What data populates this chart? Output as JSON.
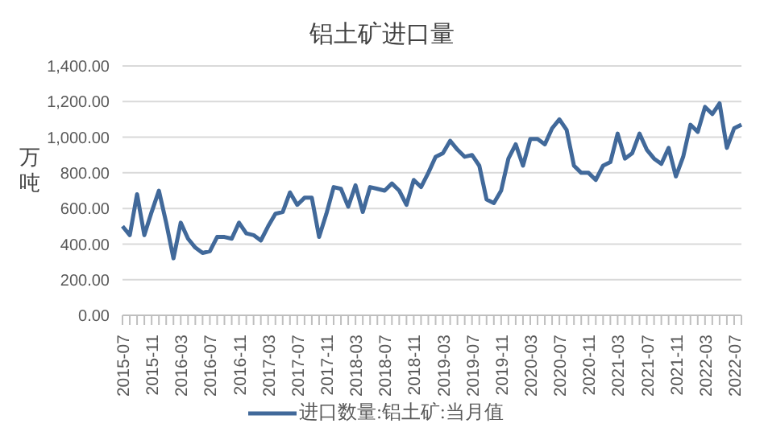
{
  "chart_data": {
    "type": "line",
    "title": "铝土矿进口量",
    "ylabel": "万吨",
    "categories": [
      "2015-07",
      null,
      null,
      null,
      "2015-11",
      null,
      null,
      null,
      "2016-03",
      null,
      null,
      null,
      "2016-07",
      null,
      null,
      null,
      "2016-11",
      null,
      null,
      null,
      "2017-03",
      null,
      null,
      null,
      "2017-07",
      null,
      null,
      null,
      "2017-11",
      null,
      null,
      null,
      "2018-03",
      null,
      null,
      null,
      "2018-07",
      null,
      null,
      null,
      "2018-11",
      null,
      null,
      null,
      "2019-03",
      null,
      null,
      null,
      "2019-07",
      null,
      null,
      null,
      "2019-11",
      null,
      null,
      null,
      "2020-03",
      null,
      null,
      null,
      "2020-07",
      null,
      null,
      null,
      "2020-11",
      null,
      null,
      null,
      "2021-03",
      null,
      null,
      null,
      "2021-07",
      null,
      null,
      null,
      "2021-11",
      null,
      null,
      null,
      "2022-03",
      null,
      null,
      null,
      "2022-07",
      null
    ],
    "series": [
      {
        "name": "进口数量:铝土矿:当月值",
        "color": "#41699a",
        "values": [
          500,
          450,
          680,
          450,
          580,
          700,
          520,
          320,
          520,
          430,
          380,
          350,
          360,
          440,
          440,
          430,
          520,
          460,
          450,
          420,
          500,
          570,
          580,
          690,
          620,
          660,
          660,
          440,
          570,
          720,
          710,
          610,
          730,
          580,
          720,
          710,
          700,
          740,
          700,
          620,
          760,
          720,
          800,
          890,
          910,
          980,
          930,
          890,
          900,
          840,
          650,
          630,
          700,
          880,
          960,
          840,
          990,
          990,
          960,
          1050,
          1100,
          1040,
          840,
          800,
          800,
          760,
          840,
          860,
          1020,
          880,
          910,
          1020,
          930,
          880,
          850,
          940,
          780,
          890,
          1070,
          1030,
          1170,
          1130,
          1190,
          940,
          1050,
          1070
        ]
      }
    ],
    "ylim": [
      0,
      1400
    ],
    "yticks": [
      {
        "value": 0,
        "label": "0.00"
      },
      {
        "value": 200,
        "label": "200.00"
      },
      {
        "value": 400,
        "label": "400.00"
      },
      {
        "value": 600,
        "label": "600.00"
      },
      {
        "value": 800,
        "label": "800.00"
      },
      {
        "value": 1000,
        "label": "1,000.00"
      },
      {
        "value": 1200,
        "label": "1,200.00"
      },
      {
        "value": 1400,
        "label": "1,400.00"
      }
    ],
    "grid": "y",
    "legend": "bottom",
    "marker": "none",
    "line_style": "solid"
  }
}
